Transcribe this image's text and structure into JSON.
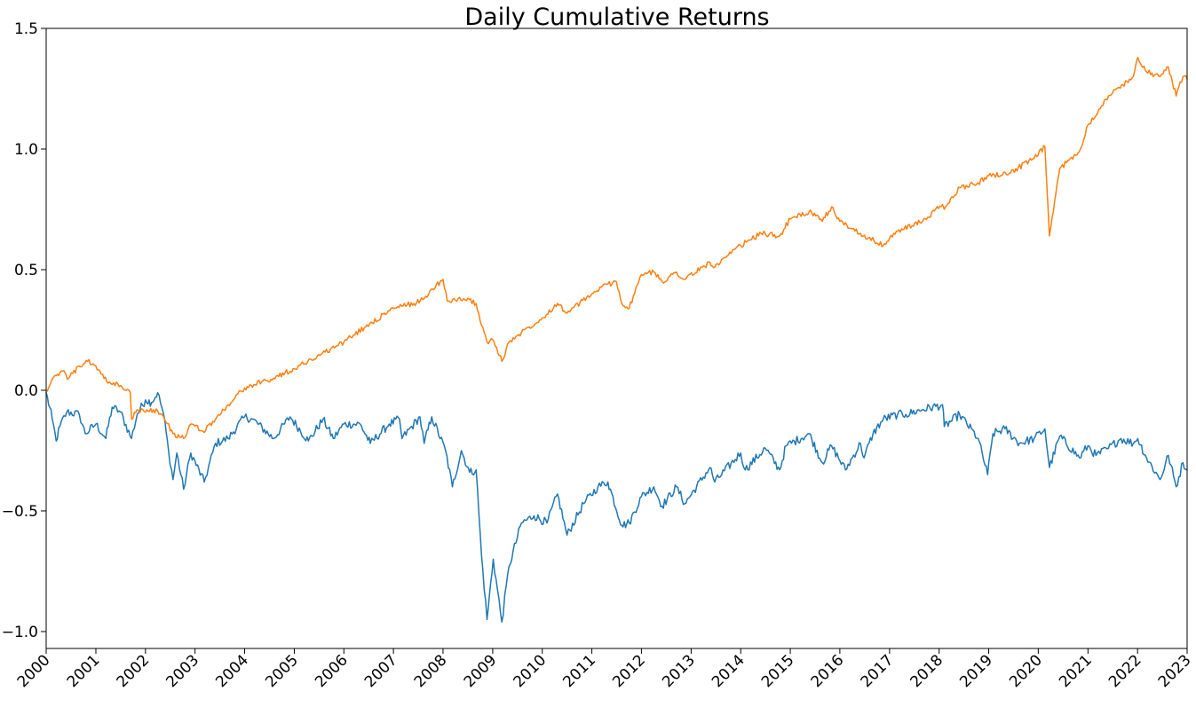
{
  "chart_data": {
    "type": "line",
    "title": "Daily Cumulative Returns",
    "xlabel": "",
    "ylabel": "",
    "x_ticks": [
      "2000",
      "2001",
      "2002",
      "2003",
      "2004",
      "2005",
      "2006",
      "2007",
      "2008",
      "2009",
      "2010",
      "2011",
      "2012",
      "2013",
      "2014",
      "2015",
      "2016",
      "2017",
      "2018",
      "2019",
      "2020",
      "2021",
      "2022",
      "2023"
    ],
    "y_ticks": [
      1.5,
      1.0,
      0.5,
      0.0,
      -0.5,
      -1.0
    ],
    "y_tick_labels": [
      "1.5",
      "1.0",
      "0.5",
      "0.0",
      "−0.5",
      "−1.0"
    ],
    "xlim": [
      "2000-01-01",
      "2023-01-01"
    ],
    "ylim": [
      -1.07,
      1.5
    ],
    "grid": false,
    "legend": "none",
    "series": [
      {
        "color": "#1f77b4",
        "points": [
          [
            "2000-01-01",
            -0.01
          ],
          [
            "2000-02-15",
            -0.12
          ],
          [
            "2000-03-15",
            -0.21
          ],
          [
            "2000-04-10",
            -0.15
          ],
          [
            "2000-06-01",
            -0.09
          ],
          [
            "2000-09-01",
            -0.1
          ],
          [
            "2000-10-15",
            -0.18
          ],
          [
            "2001-01-01",
            -0.14
          ],
          [
            "2001-03-15",
            -0.2
          ],
          [
            "2001-05-01",
            -0.07
          ],
          [
            "2001-07-01",
            -0.09
          ],
          [
            "2001-09-20",
            -0.2
          ],
          [
            "2001-11-01",
            -0.1
          ],
          [
            "2002-01-01",
            -0.04
          ],
          [
            "2002-02-15",
            -0.05
          ],
          [
            "2002-04-01",
            -0.01
          ],
          [
            "2002-05-15",
            -0.1
          ],
          [
            "2002-06-20",
            -0.25
          ],
          [
            "2002-07-23",
            -0.37
          ],
          [
            "2002-08-20",
            -0.26
          ],
          [
            "2002-10-09",
            -0.41
          ],
          [
            "2002-12-01",
            -0.26
          ],
          [
            "2003-03-10",
            -0.38
          ],
          [
            "2003-06-01",
            -0.22
          ],
          [
            "2003-09-01",
            -0.2
          ],
          [
            "2004-01-01",
            -0.11
          ],
          [
            "2004-03-01",
            -0.12
          ],
          [
            "2004-08-01",
            -0.2
          ],
          [
            "2004-12-01",
            -0.11
          ],
          [
            "2005-04-15",
            -0.21
          ],
          [
            "2005-08-01",
            -0.12
          ],
          [
            "2005-10-15",
            -0.2
          ],
          [
            "2006-01-01",
            -0.14
          ],
          [
            "2006-05-01",
            -0.14
          ],
          [
            "2006-07-15",
            -0.22
          ],
          [
            "2006-12-01",
            -0.14
          ],
          [
            "2007-02-15",
            -0.12
          ],
          [
            "2007-03-05",
            -0.2
          ],
          [
            "2007-07-15",
            -0.11
          ],
          [
            "2007-08-15",
            -0.22
          ],
          [
            "2007-10-10",
            -0.11
          ],
          [
            "2008-01-20",
            -0.25
          ],
          [
            "2008-03-10",
            -0.4
          ],
          [
            "2008-05-15",
            -0.25
          ],
          [
            "2008-07-15",
            -0.34
          ],
          [
            "2008-09-01",
            -0.33
          ],
          [
            "2008-10-10",
            -0.68
          ],
          [
            "2008-11-20",
            -0.95
          ],
          [
            "2009-01-05",
            -0.7
          ],
          [
            "2009-03-09",
            -0.96
          ],
          [
            "2009-05-01",
            -0.73
          ],
          [
            "2009-08-01",
            -0.55
          ],
          [
            "2009-11-01",
            -0.52
          ],
          [
            "2010-02-05",
            -0.55
          ],
          [
            "2010-04-23",
            -0.43
          ],
          [
            "2010-07-02",
            -0.6
          ],
          [
            "2010-11-01",
            -0.47
          ],
          [
            "2011-02-15",
            -0.4
          ],
          [
            "2011-04-29",
            -0.38
          ],
          [
            "2011-08-10",
            -0.56
          ],
          [
            "2011-10-03",
            -0.55
          ],
          [
            "2012-01-01",
            -0.44
          ],
          [
            "2012-04-01",
            -0.4
          ],
          [
            "2012-06-01",
            -0.48
          ],
          [
            "2012-09-15",
            -0.4
          ],
          [
            "2012-11-15",
            -0.47
          ],
          [
            "2013-05-20",
            -0.32
          ],
          [
            "2013-06-24",
            -0.38
          ],
          [
            "2014-01-01",
            -0.26
          ],
          [
            "2014-02-03",
            -0.33
          ],
          [
            "2014-07-01",
            -0.24
          ],
          [
            "2014-10-15",
            -0.33
          ],
          [
            "2014-12-01",
            -0.23
          ],
          [
            "2015-05-20",
            -0.18
          ],
          [
            "2015-08-25",
            -0.3
          ],
          [
            "2015-11-01",
            -0.23
          ],
          [
            "2016-02-11",
            -0.33
          ],
          [
            "2016-06-01",
            -0.22
          ],
          [
            "2016-06-27",
            -0.28
          ],
          [
            "2016-09-01",
            -0.18
          ],
          [
            "2016-11-15",
            -0.12
          ],
          [
            "2017-03-01",
            -0.1
          ],
          [
            "2017-05-01",
            -0.1
          ],
          [
            "2017-09-01",
            -0.08
          ],
          [
            "2018-01-26",
            -0.06
          ],
          [
            "2018-02-08",
            -0.15
          ],
          [
            "2018-06-01",
            -0.1
          ],
          [
            "2018-10-15",
            -0.2
          ],
          [
            "2018-12-24",
            -0.35
          ],
          [
            "2019-02-01",
            -0.18
          ],
          [
            "2019-05-01",
            -0.16
          ],
          [
            "2019-08-15",
            -0.22
          ],
          [
            "2019-12-01",
            -0.2
          ],
          [
            "2020-02-19",
            -0.16
          ],
          [
            "2020-03-23",
            -0.32
          ],
          [
            "2020-06-08",
            -0.19
          ],
          [
            "2020-10-30",
            -0.28
          ],
          [
            "2021-01-01",
            -0.23
          ],
          [
            "2021-03-01",
            -0.27
          ],
          [
            "2021-06-01",
            -0.24
          ],
          [
            "2021-09-01",
            -0.2
          ],
          [
            "2021-12-01",
            -0.22
          ],
          [
            "2022-01-03",
            -0.2
          ],
          [
            "2022-03-08",
            -0.28
          ],
          [
            "2022-06-16",
            -0.37
          ],
          [
            "2022-08-16",
            -0.27
          ],
          [
            "2022-10-12",
            -0.4
          ],
          [
            "2022-12-01",
            -0.3
          ],
          [
            "2023-01-01",
            -0.33
          ]
        ]
      },
      {
        "color": "#ff7f0e",
        "points": [
          [
            "2000-01-01",
            0.0
          ],
          [
            "2000-03-15",
            0.06
          ],
          [
            "2000-05-01",
            0.08
          ],
          [
            "2000-06-15",
            0.05
          ],
          [
            "2000-09-01",
            0.1
          ],
          [
            "2000-11-01",
            0.12
          ],
          [
            "2001-01-01",
            0.1
          ],
          [
            "2001-04-01",
            0.03
          ],
          [
            "2001-07-01",
            0.02
          ],
          [
            "2001-09-12",
            -0.01
          ],
          [
            "2001-09-21",
            -0.12
          ],
          [
            "2001-11-01",
            -0.08
          ],
          [
            "2002-01-01",
            -0.09
          ],
          [
            "2002-03-01",
            -0.08
          ],
          [
            "2002-05-01",
            -0.1
          ],
          [
            "2002-07-23",
            -0.18
          ],
          [
            "2002-10-09",
            -0.2
          ],
          [
            "2002-12-01",
            -0.14
          ],
          [
            "2003-03-01",
            -0.17
          ],
          [
            "2003-06-01",
            -0.12
          ],
          [
            "2003-09-01",
            -0.06
          ],
          [
            "2004-01-01",
            0.01
          ],
          [
            "2004-08-01",
            0.05
          ],
          [
            "2005-01-01",
            0.09
          ],
          [
            "2006-01-01",
            0.2
          ],
          [
            "2006-06-01",
            0.26
          ],
          [
            "2007-01-01",
            0.34
          ],
          [
            "2007-06-01",
            0.36
          ],
          [
            "2007-08-15",
            0.38
          ],
          [
            "2007-10-15",
            0.42
          ],
          [
            "2008-01-01",
            0.46
          ],
          [
            "2008-02-01",
            0.37
          ],
          [
            "2008-06-01",
            0.38
          ],
          [
            "2008-09-01",
            0.36
          ],
          [
            "2008-10-10",
            0.27
          ],
          [
            "2008-11-20",
            0.2
          ],
          [
            "2009-01-01",
            0.21
          ],
          [
            "2009-03-09",
            0.12
          ],
          [
            "2009-05-01",
            0.2
          ],
          [
            "2009-08-01",
            0.24
          ],
          [
            "2010-01-01",
            0.3
          ],
          [
            "2010-04-23",
            0.36
          ],
          [
            "2010-07-02",
            0.32
          ],
          [
            "2011-01-01",
            0.4
          ],
          [
            "2011-04-29",
            0.44
          ],
          [
            "2011-07-01",
            0.45
          ],
          [
            "2011-08-10",
            0.36
          ],
          [
            "2011-10-03",
            0.34
          ],
          [
            "2012-01-01",
            0.48
          ],
          [
            "2012-04-01",
            0.49
          ],
          [
            "2012-06-01",
            0.45
          ],
          [
            "2012-09-15",
            0.49
          ],
          [
            "2012-11-15",
            0.46
          ],
          [
            "2013-05-20",
            0.53
          ],
          [
            "2013-06-24",
            0.51
          ],
          [
            "2014-01-01",
            0.6
          ],
          [
            "2014-06-01",
            0.65
          ],
          [
            "2014-10-15",
            0.64
          ],
          [
            "2015-01-01",
            0.71
          ],
          [
            "2015-05-20",
            0.74
          ],
          [
            "2015-08-25",
            0.7
          ],
          [
            "2015-11-01",
            0.76
          ],
          [
            "2016-01-01",
            0.7
          ],
          [
            "2016-06-01",
            0.65
          ],
          [
            "2016-11-15",
            0.6
          ],
          [
            "2017-03-01",
            0.66
          ],
          [
            "2017-09-01",
            0.7
          ],
          [
            "2018-01-26",
            0.77
          ],
          [
            "2018-02-08",
            0.75
          ],
          [
            "2018-06-01",
            0.84
          ],
          [
            "2018-10-15",
            0.86
          ],
          [
            "2019-01-01",
            0.89
          ],
          [
            "2019-06-01",
            0.9
          ],
          [
            "2019-12-01",
            0.96
          ],
          [
            "2020-02-19",
            1.01
          ],
          [
            "2020-03-23",
            0.64
          ],
          [
            "2020-06-08",
            0.92
          ],
          [
            "2020-10-30",
            0.99
          ],
          [
            "2021-01-01",
            1.1
          ],
          [
            "2021-06-01",
            1.22
          ],
          [
            "2021-12-01",
            1.3
          ],
          [
            "2022-01-03",
            1.38
          ],
          [
            "2022-03-08",
            1.32
          ],
          [
            "2022-06-16",
            1.3
          ],
          [
            "2022-08-16",
            1.34
          ],
          [
            "2022-10-12",
            1.22
          ],
          [
            "2022-12-01",
            1.3
          ],
          [
            "2023-01-01",
            1.29
          ]
        ]
      }
    ]
  }
}
